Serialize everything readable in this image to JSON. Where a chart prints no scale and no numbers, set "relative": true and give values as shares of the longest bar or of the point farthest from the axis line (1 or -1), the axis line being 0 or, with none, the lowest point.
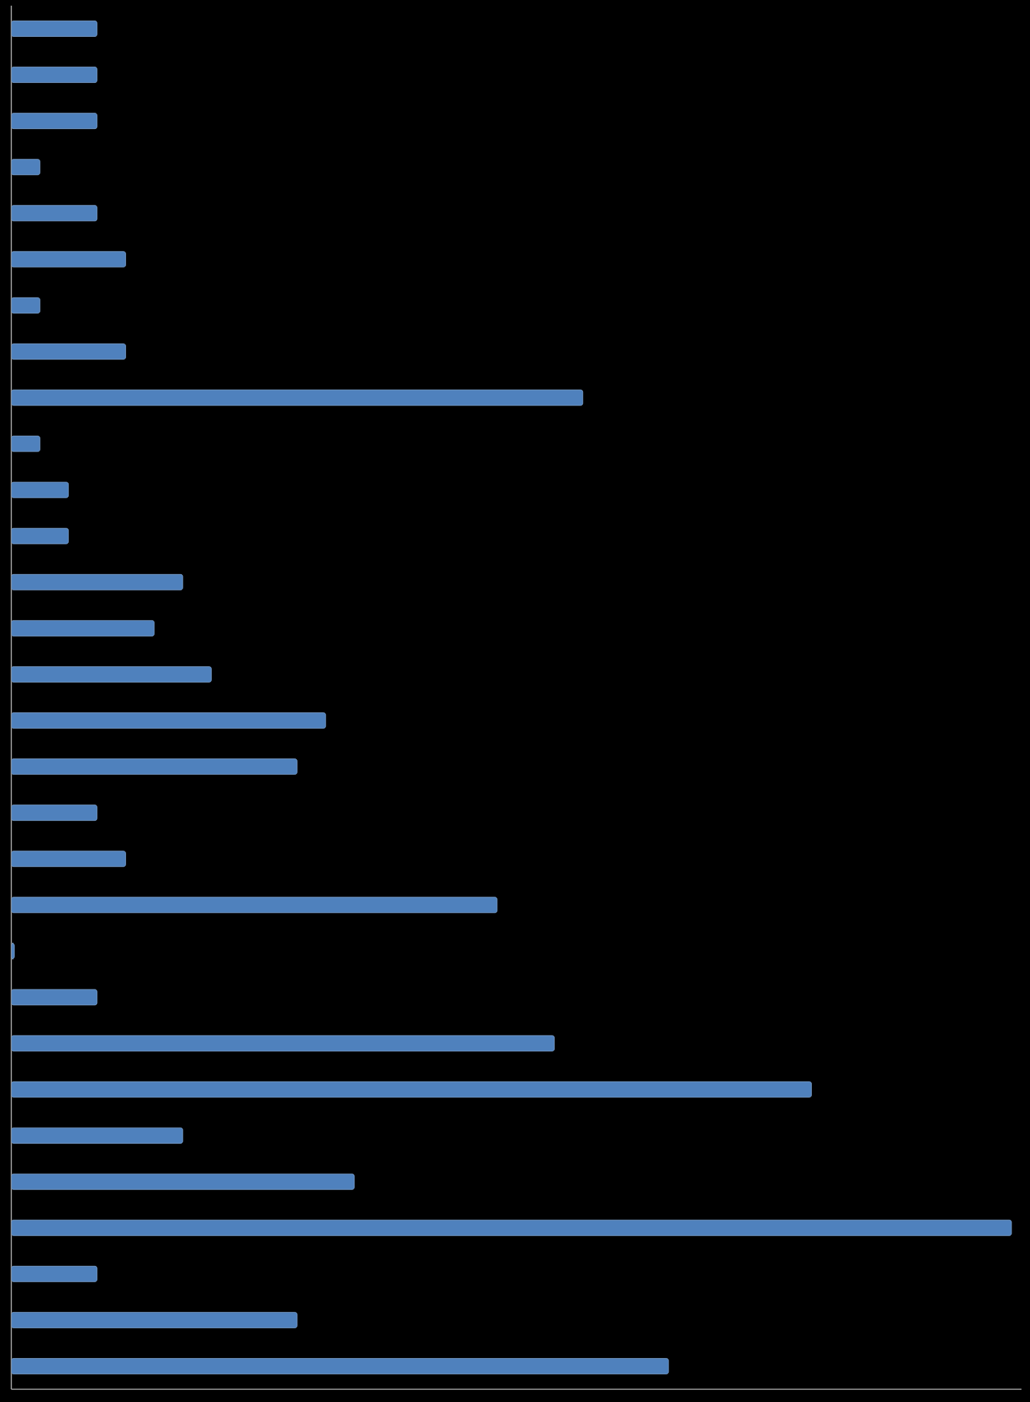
{
  "chart_data": {
    "type": "bar",
    "orientation": "horizontal",
    "relative": true,
    "color": "#4f81bd",
    "categories": [
      null,
      null,
      null,
      null,
      null,
      null,
      null,
      null,
      null,
      null,
      null,
      null,
      null,
      null,
      null,
      null,
      null,
      null,
      null,
      null,
      null,
      null,
      null,
      null,
      null,
      null,
      null,
      null,
      null,
      null
    ],
    "values": [
      0.0857,
      0.0857,
      0.0857,
      0.0286,
      0.0857,
      0.1143,
      0.0286,
      0.1143,
      0.5714,
      0.0286,
      0.0571,
      0.0571,
      0.1714,
      0.1429,
      0.2,
      0.3143,
      0.2857,
      0.0857,
      0.1143,
      0.4857,
      0.003,
      0.0857,
      0.5429,
      0.8,
      0.1714,
      0.3429,
      1,
      0.0857,
      0.2857,
      0.6571
    ]
  }
}
